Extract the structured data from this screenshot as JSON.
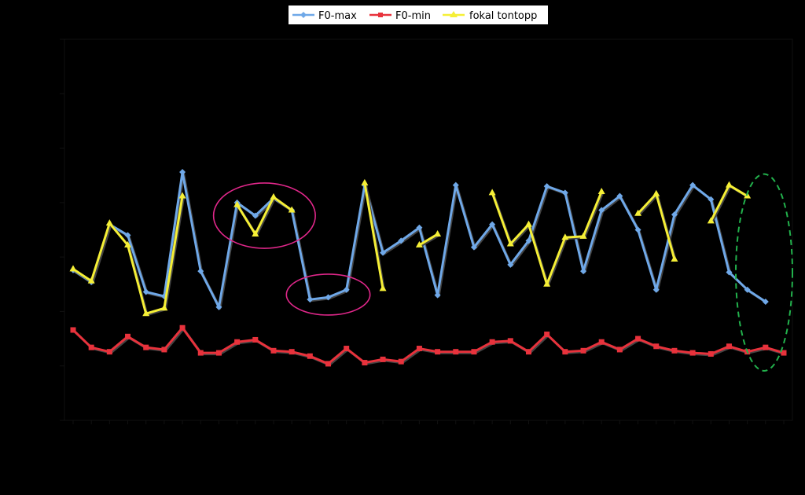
{
  "chart_data": {
    "type": "line",
    "title": "",
    "xlabel": "",
    "ylabel": "",
    "ylim": [
      0,
      350
    ],
    "grid": false,
    "legend_position": "top-center",
    "x": [
      1,
      2,
      3,
      4,
      5,
      6,
      7,
      8,
      9,
      10,
      11,
      12,
      13,
      14,
      15,
      16,
      17,
      18,
      19,
      20,
      21,
      22,
      23,
      24,
      25,
      26,
      27,
      28,
      29,
      30,
      31,
      32,
      33,
      34,
      35,
      36,
      37,
      38,
      39,
      40
    ],
    "series": [
      {
        "name": "F0-max",
        "color": "#6fa8e8",
        "marker": "diamond",
        "values": [
          138,
          127,
          180,
          170,
          118,
          114,
          228,
          137,
          104,
          200,
          188,
          204,
          193,
          111,
          113,
          120,
          216,
          154,
          165,
          177,
          115,
          216,
          159,
          180,
          143,
          165,
          215,
          209,
          137,
          193,
          206,
          175,
          120,
          189,
          216,
          203,
          136,
          120,
          109,
          null
        ]
      },
      {
        "name": "F0-min",
        "color": "#e8323c",
        "marker": "square",
        "values": [
          83,
          67,
          63,
          77,
          67,
          65,
          85,
          62,
          62,
          72,
          74,
          64,
          63,
          59,
          52,
          66,
          53,
          56,
          54,
          66,
          63,
          63,
          63,
          72,
          73,
          63,
          79,
          63,
          64,
          72,
          65,
          75,
          68,
          64,
          62,
          61,
          68,
          63,
          67,
          62
        ]
      },
      {
        "name": "fokal tontopp",
        "color": "#f5ef36",
        "marker": "triangle",
        "values": [
          139,
          128,
          181,
          161,
          98,
          103,
          206,
          null,
          null,
          198,
          171,
          205,
          193,
          null,
          null,
          null,
          218,
          121,
          null,
          161,
          171,
          null,
          null,
          209,
          162,
          180,
          125,
          168,
          169,
          210,
          null,
          190,
          208,
          148,
          null,
          183,
          216,
          206,
          null,
          null
        ]
      }
    ],
    "annotations": [
      {
        "shape": "ellipse",
        "color": "#e0278a",
        "around_x": [
          10,
          13
        ]
      },
      {
        "shape": "ellipse",
        "color": "#e0278a",
        "around_x": [
          14,
          16
        ]
      },
      {
        "shape": "dashed-ellipse",
        "color": "#22b14c",
        "around_x": [
          38,
          40
        ]
      }
    ]
  }
}
